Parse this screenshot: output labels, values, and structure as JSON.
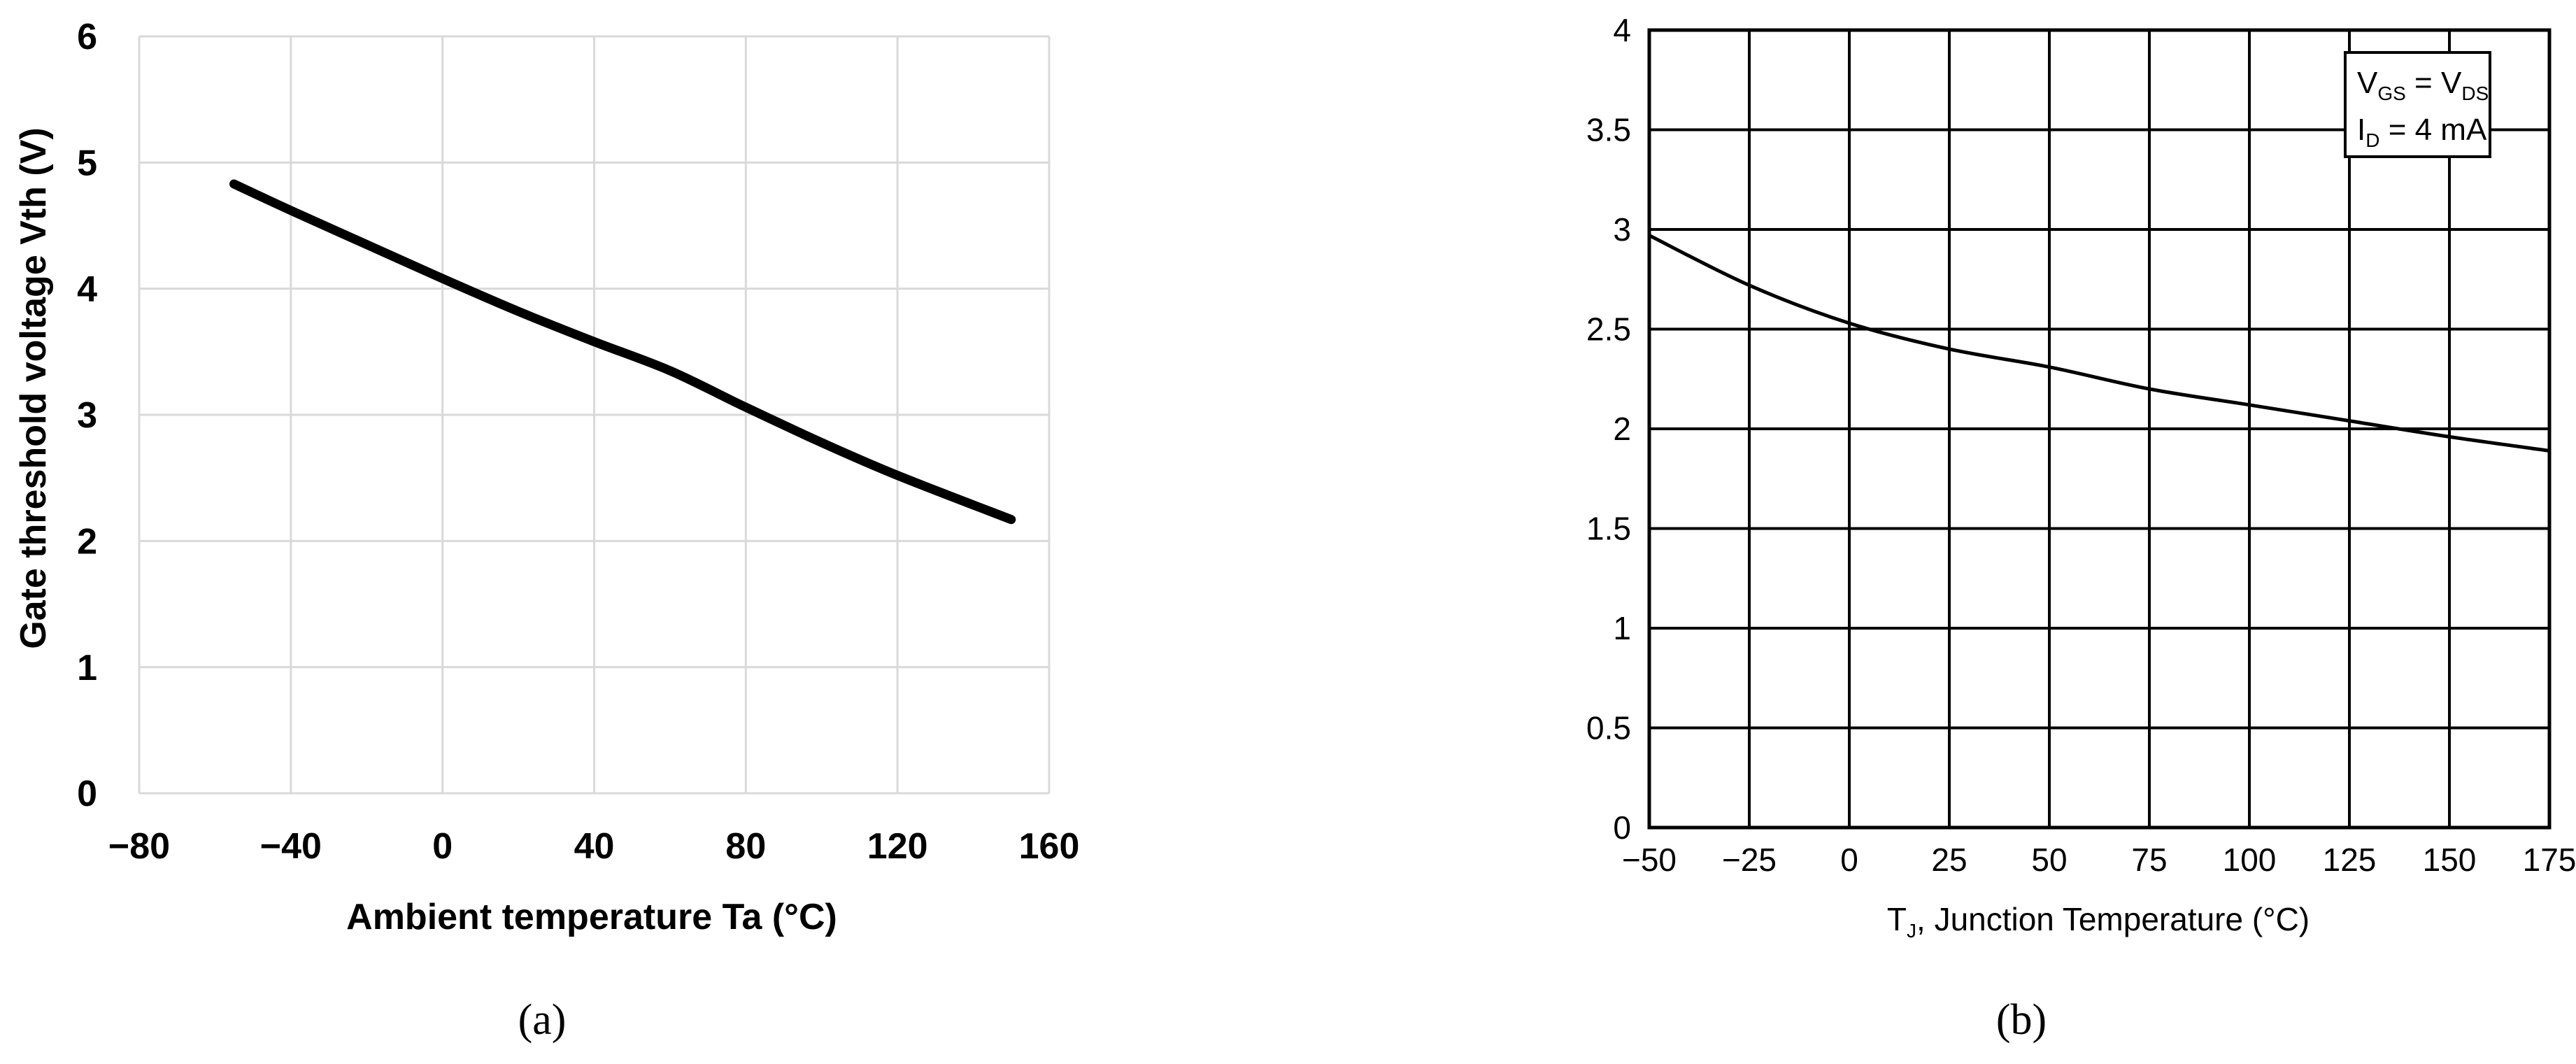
{
  "chart_data": [
    {
      "type": "line",
      "panel_label": "(a)",
      "xlabel": "Ambient temperature Ta (°C)",
      "ylabel": "Gate threshold voltage Vth (V)",
      "xlim": [
        -80,
        160
      ],
      "ylim": [
        0,
        6
      ],
      "xticks": [
        "−80",
        "−40",
        "0",
        "40",
        "80",
        "120",
        "160"
      ],
      "yticks": [
        "0",
        "1",
        "2",
        "3",
        "4",
        "5",
        "6"
      ],
      "grid": true,
      "line_color": "#000000",
      "grid_color": "#d9d9d9",
      "series": [
        {
          "x": [
            -55,
            -40,
            -20,
            0,
            20,
            40,
            60,
            80,
            100,
            120,
            150
          ],
          "y": [
            4.83,
            4.62,
            4.35,
            4.08,
            3.82,
            3.58,
            3.35,
            3.06,
            2.78,
            2.52,
            2.17
          ]
        }
      ]
    },
    {
      "type": "line",
      "panel_label": "(b)",
      "xlabel": "Junction Temperature (°C)",
      "xlabel_symbol": "T",
      "xlabel_symbol_sub": "J",
      "ylabel": "",
      "xlim": [
        -50,
        175
      ],
      "ylim": [
        0,
        4
      ],
      "xticks": [
        "−50",
        "−25",
        "0",
        "25",
        "50",
        "75",
        "100",
        "125",
        "150",
        "175"
      ],
      "yticks": [
        "0",
        "0.5",
        "1",
        "1.5",
        "2",
        "2.5",
        "3",
        "3.5",
        "4"
      ],
      "grid": true,
      "line_color": "#000000",
      "grid_color": "#000000",
      "legend_placement": "top-right",
      "annotation": {
        "line1": {
          "a": "V",
          "a_sub": "GS",
          "op": " = ",
          "b": "V",
          "b_sub": "DS"
        },
        "line2": {
          "a": "I",
          "a_sub": "D",
          "rest": " = 4 mA"
        }
      },
      "series": [
        {
          "x": [
            -50,
            -25,
            0,
            25,
            50,
            75,
            100,
            125,
            150,
            175
          ],
          "y": [
            2.97,
            2.72,
            2.53,
            2.4,
            2.31,
            2.2,
            2.12,
            2.04,
            1.96,
            1.89
          ]
        }
      ]
    }
  ]
}
